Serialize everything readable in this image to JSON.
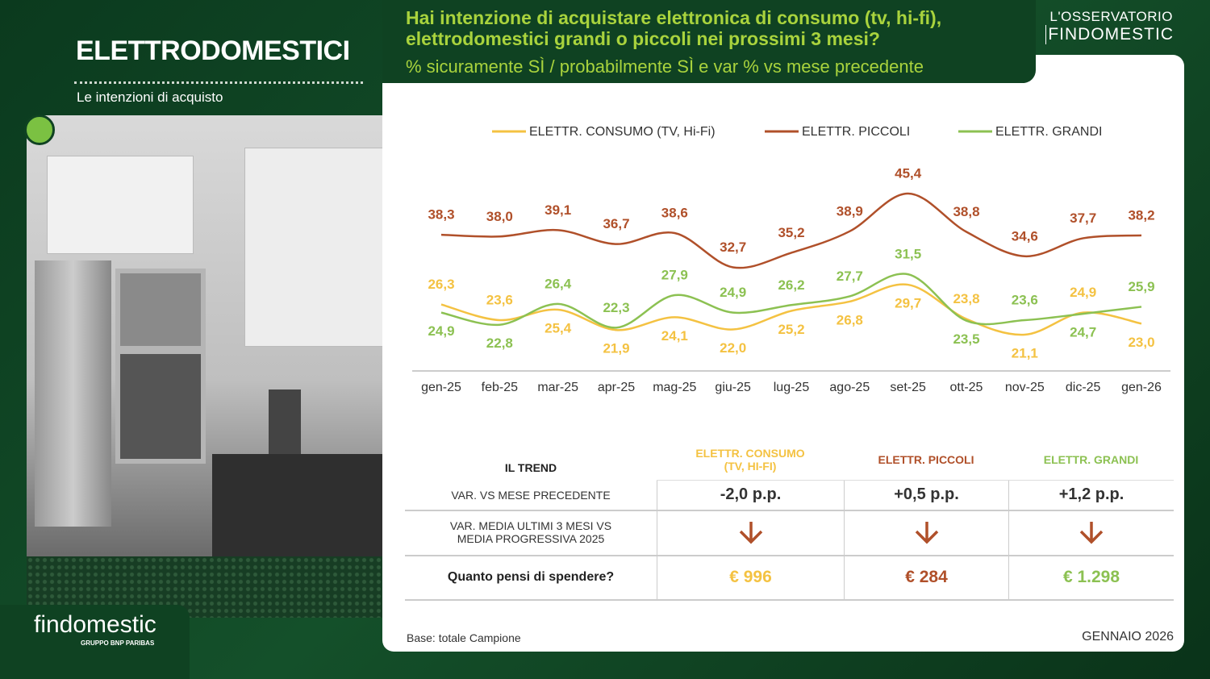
{
  "header": {
    "section_title": "ELETTRODOMESTICI",
    "section_subtitle": "Le intenzioni di acquisto",
    "question": "Hai intenzione di acquistare elettronica di consumo (tv, hi-fi), elettrodomestici grandi o piccoli nei prossimi 3 mesi?",
    "subtitle": "% sicuramente SÌ / probabilmente SÌ e var % vs mese precedente",
    "brand_top": "L'OSSERVATORIO",
    "brand_bottom": "FINDOMESTIC"
  },
  "chart_data": {
    "type": "line",
    "categories": [
      "gen-25",
      "feb-25",
      "mar-25",
      "apr-25",
      "mag-25",
      "giu-25",
      "lug-25",
      "ago-25",
      "set-25",
      "ott-25",
      "nov-25",
      "dic-25",
      "gen-26"
    ],
    "series": [
      {
        "name": "ELETTR. CONSUMO (TV, Hi-Fi)",
        "color": "#f4c242",
        "values": [
          26.3,
          23.6,
          25.4,
          21.9,
          24.1,
          22.0,
          25.2,
          26.8,
          29.7,
          23.8,
          21.1,
          24.9,
          23.0
        ],
        "value_labels": [
          "26,3",
          "23,6",
          "25,4",
          "21,9",
          "24,1",
          "22,0",
          "25,2",
          "26,8",
          "29,7",
          "23,8",
          "21,1",
          "24,9",
          "23,0"
        ]
      },
      {
        "name": "ELETTR. PICCOLI",
        "color": "#b0502a",
        "values": [
          38.3,
          38.0,
          39.1,
          36.7,
          38.6,
          32.7,
          35.2,
          38.9,
          45.4,
          38.8,
          34.6,
          37.7,
          38.2
        ],
        "value_labels": [
          "38,3",
          "38,0",
          "39,1",
          "36,7",
          "38,6",
          "32,7",
          "35,2",
          "38,9",
          "45,4",
          "38,8",
          "34,6",
          "37,7",
          "38,2"
        ]
      },
      {
        "name": "ELETTR. GRANDI",
        "color": "#8cc152",
        "values": [
          24.9,
          22.8,
          26.4,
          22.3,
          27.9,
          24.9,
          26.2,
          27.7,
          31.5,
          23.5,
          23.6,
          24.7,
          25.9
        ],
        "value_labels": [
          "24,9",
          "22,8",
          "26,4",
          "22,3",
          "27,9",
          "24,9",
          "26,2",
          "27,7",
          "31,5",
          "23,5",
          "23,6",
          "24,7",
          "25,9"
        ]
      }
    ]
  },
  "table": {
    "header": [
      "IL TREND",
      "ELETTR. CONSUMO (TV, HI-FI)",
      "ELETTR. PICCOLI",
      "ELETTR. GRANDI"
    ],
    "rows": [
      [
        "VAR. VS MESE PRECEDENTE",
        "-2,0 p.p.",
        "+0,5 p.p.",
        "+1,2 p.p."
      ],
      [
        "VAR.  MEDIA ULTIMI 3 MESI VS MEDIA PROGRESSIVA  2025"
      ],
      [
        "Quanto pensi di spendere?",
        "€ 996",
        "€ 284",
        "€ 1.298"
      ]
    ]
  },
  "footer": {
    "note": "Base: totale Campione",
    "date": "GENNAIO 2026"
  },
  "logo": {
    "name": "findomestic",
    "group": "GRUPPO BNP PARIBAS"
  }
}
